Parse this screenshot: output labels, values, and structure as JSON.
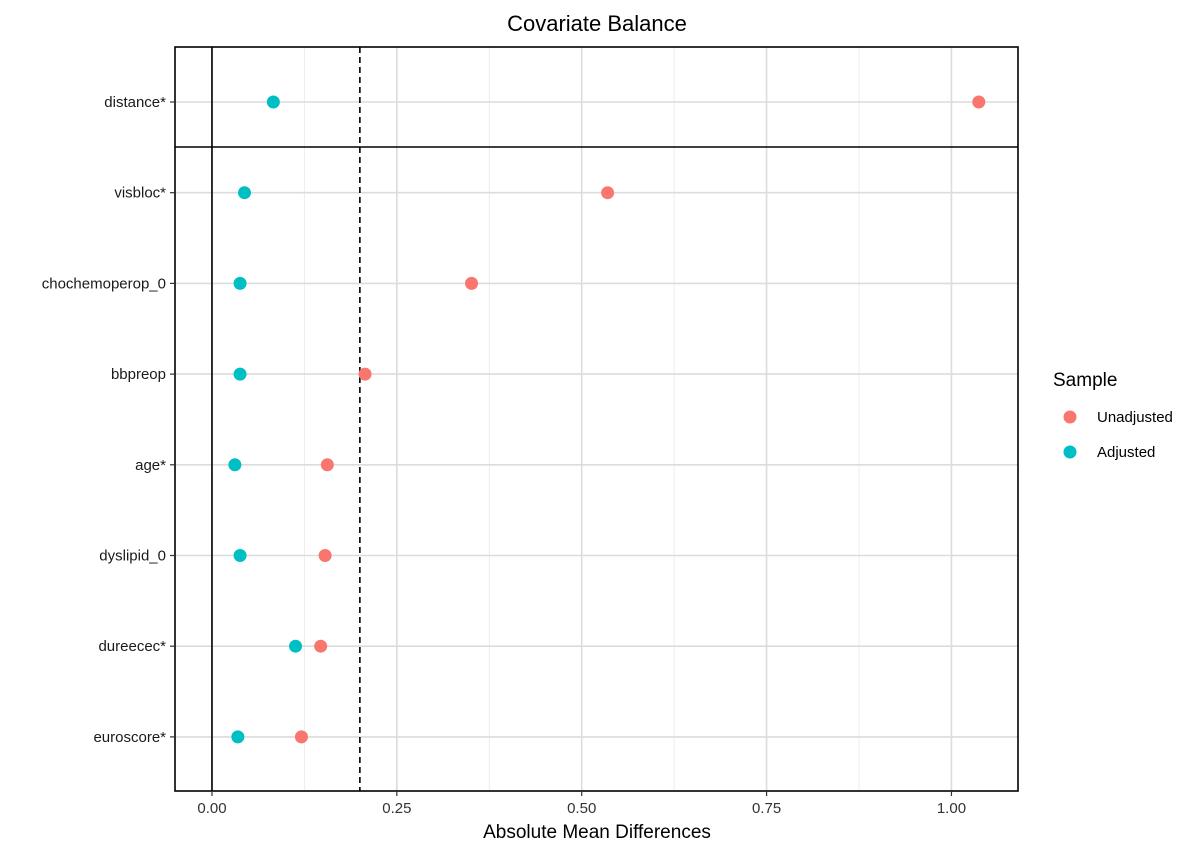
{
  "chart_data": {
    "type": "scatter",
    "title": "Covariate Balance",
    "xlabel": "Absolute Mean Differences",
    "ylabel": "",
    "xlim": [
      -0.05,
      1.09
    ],
    "x_ticks": [
      0.0,
      0.25,
      0.5,
      0.75,
      1.0
    ],
    "x_tick_labels": [
      "0.00",
      "0.25",
      "0.50",
      "0.75",
      "1.00"
    ],
    "threshold": 0.2,
    "reference_line": 0,
    "grid": true,
    "legend_position": "right",
    "legend_title": "Sample",
    "categories": [
      "distance*",
      "visbloc*",
      "chochemoperop_0",
      "bbpreop",
      "age*",
      "dyslipid_0",
      "dureecec*",
      "euroscore*"
    ],
    "series": [
      {
        "name": "Unadjusted",
        "color": "#F8766D",
        "values": [
          1.037,
          0.535,
          0.351,
          0.207,
          0.156,
          0.153,
          0.147,
          0.121
        ]
      },
      {
        "name": "Adjusted",
        "color": "#00BFC4",
        "values": [
          0.083,
          0.044,
          0.038,
          0.038,
          0.031,
          0.038,
          0.113,
          0.035
        ]
      }
    ]
  }
}
